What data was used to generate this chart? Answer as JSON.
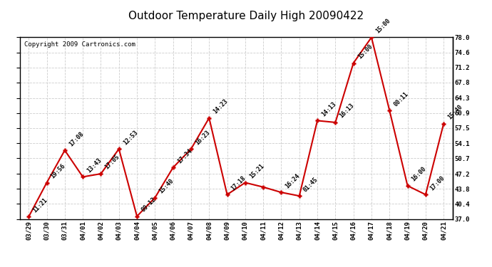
{
  "title": "Outdoor Temperature Daily High 20090422",
  "copyright": "Copyright 2009 Cartronics.com",
  "x_labels": [
    "03/29",
    "03/30",
    "03/31",
    "04/01",
    "04/02",
    "04/03",
    "04/04",
    "04/05",
    "04/06",
    "04/07",
    "04/08",
    "04/09",
    "04/10",
    "04/11",
    "04/12",
    "04/13",
    "04/14",
    "04/15",
    "04/16",
    "04/17",
    "04/18",
    "04/19",
    "04/20",
    "04/21"
  ],
  "y_values": [
    37.5,
    45.2,
    52.5,
    46.5,
    47.2,
    52.8,
    37.6,
    41.8,
    48.6,
    52.8,
    59.8,
    42.5,
    45.2,
    44.2,
    43.0,
    42.2,
    59.2,
    58.8,
    72.2,
    78.0,
    61.5,
    44.5,
    42.5,
    58.5
  ],
  "point_labels": [
    "11:21",
    "19:56",
    "17:08",
    "13:43",
    "17:05",
    "12:53",
    "00:12",
    "15:40",
    "17:34",
    "16:23",
    "14:23",
    "17:18",
    "15:21",
    "",
    "16:24",
    "01:45",
    "14:13",
    "16:13",
    "15:00",
    "15:00",
    "00:11",
    "16:00",
    "17:00",
    "15:40"
  ],
  "ylim": [
    37.0,
    78.0
  ],
  "yticks": [
    37.0,
    40.4,
    43.8,
    47.2,
    50.7,
    54.1,
    57.5,
    60.9,
    64.3,
    67.8,
    71.2,
    74.6,
    78.0
  ],
  "line_color": "#cc0000",
  "marker_color": "#cc0000",
  "bg_color": "#ffffff",
  "grid_color": "#cccccc",
  "title_fontsize": 11,
  "copyright_fontsize": 6.5,
  "label_fontsize": 6.0,
  "tick_fontsize": 6.5
}
